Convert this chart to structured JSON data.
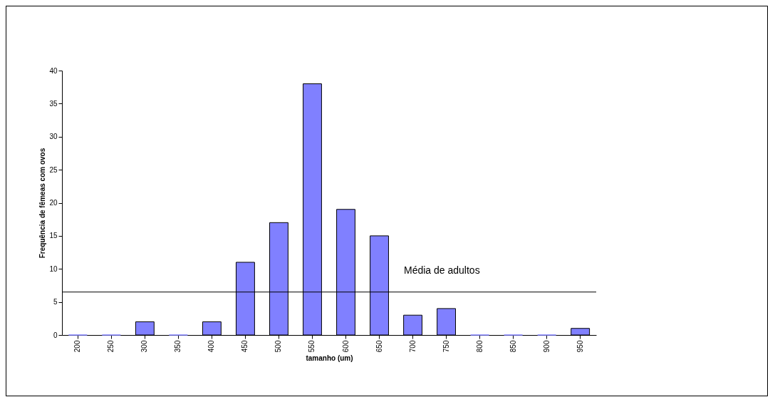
{
  "chart_data": {
    "type": "bar",
    "xlabel": "tamanho (um)",
    "ylabel": "Frequência de fêmeas com ovos",
    "categories": [
      "200",
      "250",
      "300",
      "350",
      "400",
      "450",
      "500",
      "550",
      "600",
      "650",
      "700",
      "750",
      "800",
      "850",
      "900",
      "950"
    ],
    "values": [
      0,
      0,
      2,
      0,
      2,
      11,
      17,
      38,
      19,
      15,
      3,
      4,
      0,
      0,
      0,
      1
    ],
    "color": "#8080ff",
    "ylim": [
      0,
      40
    ],
    "yticks": [
      0,
      5,
      10,
      15,
      20,
      25,
      30,
      35,
      40
    ],
    "grid": false,
    "ref_lines": [
      {
        "axis": "y",
        "value": 6.5,
        "label": "Média de adultos",
        "color": "#000000"
      }
    ]
  }
}
